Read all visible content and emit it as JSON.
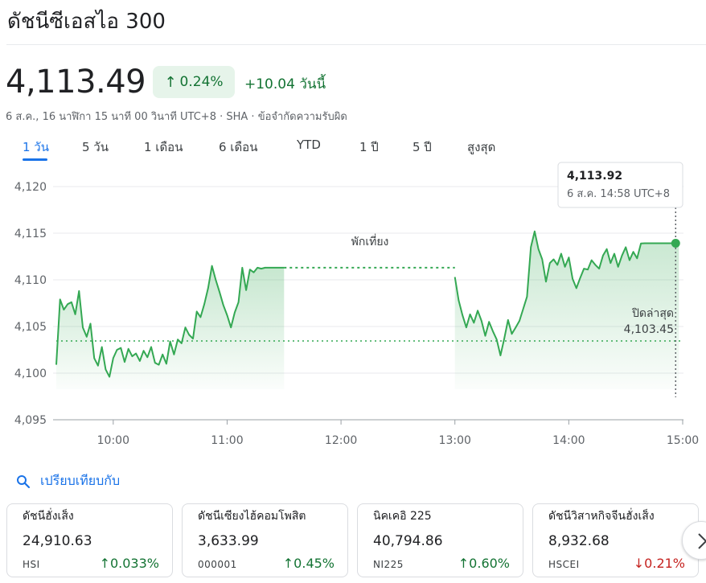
{
  "header": {
    "title": "ดัชนีซีเอสไอ 300"
  },
  "quote": {
    "price": "4,113.49",
    "pct_arrow": "↑",
    "pct": "0.24%",
    "abs_change": "+10.04",
    "period": "วันนี้",
    "meta": "6 ส.ค., 16 นาฬิกา 15 นาที 00 วินาที UTC+8 · SHA · ข้อจำกัดความรับผิด"
  },
  "tabs": [
    "1 วัน",
    "5 วัน",
    "1 เดือน",
    "6 เดือน",
    "YTD",
    "1 ปี",
    "5 ปี",
    "สูงสุด"
  ],
  "chart": {
    "y_ticks": [
      "4,120",
      "4,115",
      "4,110",
      "4,105",
      "4,100",
      "4,095"
    ],
    "x_ticks": [
      "10:00",
      "11:00",
      "12:00",
      "13:00",
      "14:00",
      "15:00"
    ],
    "break_label": "พักเที่ยง",
    "prev_close_label": "ปิดล่าสุด",
    "prev_close_value": "4,103.45",
    "tooltip_value": "4,113.92",
    "tooltip_time": "6 ส.ค. 14:58 UTC+8",
    "line_color": "#34a853"
  },
  "chart_data": {
    "type": "line",
    "xlabel": "",
    "ylabel": "",
    "ylim": [
      4095,
      4122
    ],
    "x_range": [
      "09:30",
      "15:00"
    ],
    "prev_close": 4103.45,
    "lunch_break": [
      "11:30",
      "13:00"
    ],
    "series": [
      {
        "x": [
          "09:30",
          "09:32",
          "09:34",
          "09:36",
          "09:38",
          "09:40",
          "09:42",
          "09:44",
          "09:46",
          "09:48",
          "09:50",
          "09:52",
          "09:54",
          "09:56",
          "09:58",
          "10:00",
          "10:02",
          "10:04",
          "10:06",
          "10:08",
          "10:10",
          "10:12",
          "10:14",
          "10:16",
          "10:18",
          "10:20",
          "10:22",
          "10:24",
          "10:26",
          "10:28",
          "10:30",
          "10:32",
          "10:34",
          "10:36",
          "10:38",
          "10:40",
          "10:42",
          "10:44",
          "10:46",
          "10:48",
          "10:50",
          "10:52",
          "10:54",
          "10:56",
          "10:58",
          "11:00",
          "11:02",
          "11:04",
          "11:06",
          "11:08",
          "11:10",
          "11:12",
          "11:14",
          "11:16",
          "11:18",
          "11:20",
          "11:22",
          "11:24",
          "11:26",
          "11:28",
          "11:30",
          "13:00",
          "13:02",
          "13:04",
          "13:06",
          "13:08",
          "13:10",
          "13:12",
          "13:14",
          "13:16",
          "13:18",
          "13:20",
          "13:22",
          "13:24",
          "13:26",
          "13:28",
          "13:30",
          "13:32",
          "13:34",
          "13:36",
          "13:38",
          "13:40",
          "13:42",
          "13:44",
          "13:46",
          "13:48",
          "13:50",
          "13:52",
          "13:54",
          "13:56",
          "13:58",
          "14:00",
          "14:02",
          "14:04",
          "14:06",
          "14:08",
          "14:10",
          "14:12",
          "14:14",
          "14:16",
          "14:18",
          "14:20",
          "14:22",
          "14:24",
          "14:26",
          "14:28",
          "14:30",
          "14:32",
          "14:34",
          "14:36",
          "14:38",
          "14:40",
          "14:42",
          "14:44",
          "14:46",
          "14:48",
          "14:50",
          "14:52",
          "14:54",
          "14:56",
          "14:58"
        ],
        "values": [
          4100.9,
          4107.9,
          4106.8,
          4107.4,
          4107.6,
          4106.3,
          4108.8,
          4104.9,
          4103.9,
          4105.3,
          4101.6,
          4100.8,
          4102.8,
          4100.4,
          4099.6,
          4101.6,
          4102.5,
          4102.7,
          4101.2,
          4102.6,
          4101.8,
          4102.1,
          4101.3,
          4102.4,
          4101.7,
          4102.8,
          4101.1,
          4100.9,
          4102.0,
          4101.0,
          4103.4,
          4102.0,
          4103.6,
          4103.2,
          4104.9,
          4104.1,
          4103.7,
          4106.6,
          4106.0,
          4107.4,
          4109.1,
          4111.5,
          4110.0,
          4108.7,
          4107.3,
          4106.2,
          4104.9,
          4106.5,
          4107.6,
          4111.3,
          4108.9,
          4111.1,
          4110.8,
          4111.3,
          4111.2,
          4111.3,
          4111.3,
          4111.3,
          4111.3,
          4111.3,
          4111.3,
          4110.3,
          4107.8,
          4106.2,
          4104.9,
          4106.3,
          4105.4,
          4106.7,
          4105.6,
          4104.0,
          4105.5,
          4104.5,
          4103.6,
          4101.9,
          4103.7,
          4105.7,
          4104.2,
          4104.9,
          4105.6,
          4106.9,
          4108.2,
          4113.5,
          4115.2,
          4113.3,
          4112.2,
          4109.8,
          4111.8,
          4112.2,
          4111.6,
          4112.8,
          4111.4,
          4112.4,
          4110.1,
          4109.1,
          4110.2,
          4111.2,
          4111.1,
          4112.1,
          4111.6,
          4111.2,
          4112.6,
          4113.3,
          4111.8,
          4112.8,
          4111.4,
          4112.6,
          4113.5,
          4112.1,
          4113.0,
          4112.3,
          4113.9,
          4113.92,
          4113.92,
          4113.92,
          4113.92,
          4113.92,
          4113.92,
          4113.92,
          4113.92,
          4113.92,
          4113.92
        ]
      }
    ]
  },
  "compare": {
    "label": "เปรียบเทียบกับ"
  },
  "cards": [
    {
      "name": "ดัชนีฮั่งเส็ง",
      "value": "24,910.63",
      "ticker": "HSI",
      "arrow": "↑",
      "change": "0.033%",
      "dir": "up"
    },
    {
      "name": "ดัชนีเซียงไฮ้คอมโพสิต",
      "value": "3,633.99",
      "ticker": "000001",
      "arrow": "↑",
      "change": "0.45%",
      "dir": "up"
    },
    {
      "name": "นิคเคอิ 225",
      "value": "40,794.86",
      "ticker": "NI225",
      "arrow": "↑",
      "change": "0.60%",
      "dir": "up"
    },
    {
      "name": "ดัชนีวิสาหกิจจีนฮั่งเส็ง",
      "value": "8,932.68",
      "ticker": "HSCEI",
      "arrow": "↓",
      "change": "0.21%",
      "dir": "down"
    }
  ]
}
